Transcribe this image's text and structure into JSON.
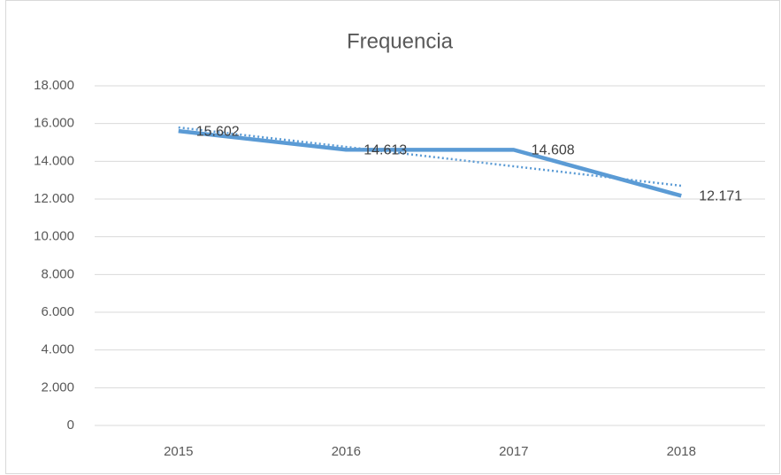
{
  "chart_data": {
    "type": "line",
    "title": "Frequencia",
    "categories": [
      "2015",
      "2016",
      "2017",
      "2018"
    ],
    "values": [
      15602,
      14613,
      14608,
      12171
    ],
    "value_labels": [
      "15.602",
      "14.613",
      "14.608",
      "12.171"
    ],
    "color": "#5b9bd5",
    "trendline": "linear",
    "ylim": [
      0,
      18000
    ],
    "yticks": [
      0,
      {
        "value": 2000,
        "label": "2.000"
      },
      {
        "value": 4000,
        "label": "4.000"
      },
      {
        "value": 6000,
        "label": "6.000"
      },
      {
        "value": 8000,
        "label": "8.000"
      },
      {
        "value": 10000,
        "label": "10.000"
      },
      {
        "value": 12000,
        "label": "12.000"
      },
      {
        "value": 14000,
        "label": "14.000"
      },
      {
        "value": 16000,
        "label": "16.000"
      },
      {
        "value": 18000,
        "label": "18.000"
      }
    ],
    "grid": true
  }
}
